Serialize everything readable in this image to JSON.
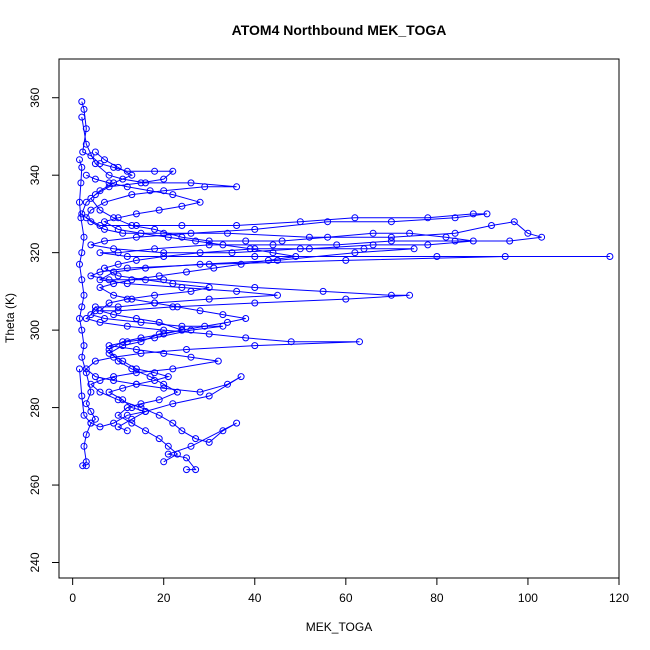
{
  "chart_data": {
    "type": "scatter",
    "title": "ATOM4 Northbound MEK_TOGA",
    "xlabel": "MEK_TOGA",
    "ylabel": "Theta (K)",
    "xlim": [
      -3,
      120
    ],
    "ylim": [
      236,
      370
    ],
    "x_ticks": [
      0,
      20,
      40,
      60,
      80,
      100,
      120
    ],
    "y_ticks": [
      240,
      260,
      280,
      300,
      320,
      340,
      360
    ],
    "grid": false,
    "legend": "none",
    "point_style": "open-circle-connected",
    "series": [
      {
        "color": "#0000ff",
        "points": [
          [
            2,
            359
          ],
          [
            2.5,
            357
          ],
          [
            3,
            352
          ],
          [
            2.2,
            346
          ],
          [
            4,
            345
          ],
          [
            6,
            343
          ],
          [
            9,
            342
          ],
          [
            12,
            341
          ],
          [
            18,
            341
          ],
          [
            22,
            341
          ],
          [
            20,
            339
          ],
          [
            15,
            338
          ],
          [
            8,
            337
          ],
          [
            5,
            335
          ],
          [
            3,
            333
          ],
          [
            2,
            330
          ],
          [
            4,
            328
          ],
          [
            7,
            326
          ],
          [
            11,
            325
          ],
          [
            20,
            325
          ],
          [
            34,
            325
          ],
          [
            52,
            324
          ],
          [
            70,
            324
          ],
          [
            84,
            325
          ],
          [
            92,
            327
          ],
          [
            97,
            328
          ],
          [
            100,
            325
          ],
          [
            103,
            324
          ],
          [
            96,
            323
          ],
          [
            84,
            323
          ],
          [
            70,
            323
          ],
          [
            58,
            322
          ],
          [
            44,
            322
          ],
          [
            30,
            322
          ],
          [
            18,
            321
          ],
          [
            10,
            320
          ],
          [
            6,
            320
          ],
          [
            12,
            319
          ],
          [
            40,
            319
          ],
          [
            80,
            319
          ],
          [
            118,
            319
          ],
          [
            95,
            319
          ],
          [
            60,
            318
          ],
          [
            30,
            317
          ],
          [
            12,
            316
          ],
          [
            6,
            315
          ],
          [
            4,
            314
          ],
          [
            8,
            313
          ],
          [
            20,
            313
          ],
          [
            40,
            311
          ],
          [
            55,
            310
          ],
          [
            70,
            309
          ],
          [
            74,
            309
          ],
          [
            60,
            308
          ],
          [
            40,
            307
          ],
          [
            22,
            306
          ],
          [
            10,
            305
          ],
          [
            5,
            305
          ],
          [
            3,
            303
          ],
          [
            6,
            302
          ],
          [
            12,
            301
          ],
          [
            20,
            300
          ],
          [
            30,
            299
          ],
          [
            38,
            298
          ],
          [
            48,
            297
          ],
          [
            63,
            297
          ],
          [
            40,
            296
          ],
          [
            25,
            295
          ],
          [
            15,
            294
          ],
          [
            9,
            293
          ],
          [
            5,
            292
          ],
          [
            3,
            290
          ],
          [
            5,
            288
          ],
          [
            9,
            287
          ],
          [
            14,
            286
          ],
          [
            20,
            285
          ],
          [
            28,
            284
          ],
          [
            34,
            286
          ],
          [
            37,
            288
          ],
          [
            30,
            283
          ],
          [
            22,
            281
          ],
          [
            16,
            279
          ],
          [
            12,
            278
          ],
          [
            9,
            276
          ],
          [
            6,
            275
          ],
          [
            4,
            276
          ],
          [
            3,
            273
          ],
          [
            2.5,
            270
          ],
          [
            3,
            266
          ],
          [
            2.2,
            265
          ],
          [
            3,
            265
          ]
        ]
      },
      {
        "color": "#0000ff",
        "points": [
          [
            2,
            355
          ],
          [
            3,
            348
          ],
          [
            5,
            343
          ],
          [
            8,
            340
          ],
          [
            11,
            339
          ],
          [
            16,
            338
          ],
          [
            26,
            338
          ],
          [
            36,
            337
          ],
          [
            29,
            337
          ],
          [
            20,
            336
          ],
          [
            13,
            335
          ],
          [
            7,
            333
          ],
          [
            4,
            331
          ],
          [
            3,
            329
          ],
          [
            6,
            327
          ],
          [
            14,
            327
          ],
          [
            24,
            327
          ],
          [
            36,
            327
          ],
          [
            50,
            328
          ],
          [
            62,
            329
          ],
          [
            78,
            329
          ],
          [
            88,
            330
          ],
          [
            91,
            330
          ],
          [
            84,
            329
          ],
          [
            70,
            328
          ],
          [
            56,
            328
          ],
          [
            40,
            326
          ],
          [
            26,
            325
          ],
          [
            14,
            324
          ],
          [
            7,
            323
          ],
          [
            4,
            322
          ],
          [
            9,
            321
          ],
          [
            20,
            320
          ],
          [
            35,
            320
          ],
          [
            50,
            321
          ],
          [
            64,
            321
          ],
          [
            75,
            321
          ],
          [
            62,
            320
          ],
          [
            45,
            318
          ],
          [
            28,
            317
          ],
          [
            16,
            316
          ],
          [
            9,
            315
          ],
          [
            6,
            313
          ],
          [
            12,
            312
          ],
          [
            24,
            311
          ],
          [
            36,
            310
          ],
          [
            45,
            309
          ],
          [
            30,
            308
          ],
          [
            18,
            307
          ],
          [
            10,
            306
          ],
          [
            5,
            306
          ],
          [
            4,
            304
          ],
          [
            7,
            303
          ],
          [
            15,
            302
          ],
          [
            24,
            301
          ],
          [
            33,
            301
          ],
          [
            26,
            300
          ],
          [
            18,
            298
          ],
          [
            12,
            297
          ],
          [
            8,
            296
          ],
          [
            14,
            295
          ],
          [
            20,
            294
          ],
          [
            26,
            293
          ],
          [
            32,
            292
          ],
          [
            22,
            290
          ],
          [
            14,
            289
          ],
          [
            9,
            288
          ],
          [
            6,
            287
          ],
          [
            4,
            286
          ],
          [
            6,
            284
          ],
          [
            10,
            282
          ],
          [
            15,
            280
          ],
          [
            19,
            278
          ],
          [
            22,
            276
          ],
          [
            24,
            274
          ],
          [
            27,
            272
          ],
          [
            30,
            271
          ],
          [
            33,
            274
          ],
          [
            36,
            276
          ],
          [
            26,
            270
          ],
          [
            21,
            268
          ],
          [
            25,
            267
          ],
          [
            27,
            264
          ],
          [
            25,
            264
          ]
        ]
      },
      {
        "color": "#0000ff",
        "points": [
          [
            1.5,
            344
          ],
          [
            2,
            342
          ],
          [
            1.8,
            338
          ],
          [
            1.5,
            333
          ],
          [
            1.8,
            329
          ],
          [
            2.5,
            324
          ],
          [
            2,
            320
          ],
          [
            1.5,
            317
          ],
          [
            2,
            313
          ],
          [
            2.5,
            309
          ],
          [
            2,
            306
          ],
          [
            1.5,
            303
          ],
          [
            2,
            300
          ],
          [
            2.5,
            296
          ],
          [
            2,
            293
          ],
          [
            3,
            289
          ],
          [
            4,
            284
          ],
          [
            3,
            281
          ],
          [
            4,
            279
          ],
          [
            5,
            277
          ],
          [
            4,
            276
          ],
          [
            2.5,
            278
          ],
          [
            2,
            283
          ],
          [
            1.5,
            290
          ]
        ]
      },
      {
        "color": "#0000ff",
        "points": [
          [
            5,
            346
          ],
          [
            7,
            344
          ],
          [
            10,
            342
          ],
          [
            13,
            340
          ],
          [
            9,
            338
          ],
          [
            6,
            336
          ],
          [
            4,
            334
          ],
          [
            6,
            331
          ],
          [
            9,
            329
          ],
          [
            13,
            327
          ],
          [
            18,
            326
          ],
          [
            24,
            324
          ],
          [
            30,
            323
          ],
          [
            38,
            323
          ],
          [
            46,
            323
          ],
          [
            56,
            324
          ],
          [
            66,
            325
          ],
          [
            74,
            325
          ],
          [
            82,
            324
          ],
          [
            88,
            323
          ],
          [
            78,
            322
          ],
          [
            66,
            322
          ],
          [
            52,
            321
          ],
          [
            40,
            321
          ],
          [
            28,
            320
          ],
          [
            20,
            319
          ],
          [
            14,
            318
          ],
          [
            10,
            317
          ],
          [
            7,
            316
          ],
          [
            10,
            314
          ],
          [
            16,
            313
          ],
          [
            22,
            312
          ],
          [
            30,
            311
          ],
          [
            26,
            310
          ],
          [
            18,
            309
          ],
          [
            12,
            308
          ],
          [
            8,
            307
          ],
          [
            6,
            305
          ],
          [
            9,
            304
          ],
          [
            14,
            303
          ],
          [
            19,
            302
          ],
          [
            24,
            300
          ],
          [
            20,
            299
          ],
          [
            15,
            298
          ],
          [
            11,
            297
          ],
          [
            8,
            295
          ],
          [
            10,
            292
          ],
          [
            13,
            290
          ],
          [
            17,
            288
          ],
          [
            20,
            286
          ],
          [
            23,
            284
          ],
          [
            19,
            282
          ],
          [
            15,
            281
          ],
          [
            12,
            280
          ],
          [
            10,
            278
          ],
          [
            13,
            276
          ],
          [
            16,
            274
          ],
          [
            19,
            272
          ],
          [
            21,
            270
          ],
          [
            23,
            268
          ],
          [
            20,
            266
          ]
        ]
      },
      {
        "color": "#0000ff",
        "points": [
          [
            3,
            340
          ],
          [
            5,
            339
          ],
          [
            8,
            338
          ],
          [
            12,
            337
          ],
          [
            17,
            336
          ],
          [
            22,
            335
          ],
          [
            28,
            333
          ],
          [
            24,
            332
          ],
          [
            19,
            331
          ],
          [
            14,
            330
          ],
          [
            10,
            329
          ],
          [
            7,
            328
          ],
          [
            10,
            326
          ],
          [
            15,
            325
          ],
          [
            21,
            324
          ],
          [
            27,
            323
          ],
          [
            33,
            322
          ],
          [
            39,
            321
          ],
          [
            44,
            320
          ],
          [
            49,
            319
          ],
          [
            43,
            318
          ],
          [
            37,
            317
          ],
          [
            31,
            316
          ],
          [
            25,
            315
          ],
          [
            19,
            314
          ],
          [
            13,
            313
          ],
          [
            9,
            312
          ],
          [
            6,
            311
          ],
          [
            9,
            309
          ],
          [
            13,
            308
          ],
          [
            18,
            307
          ],
          [
            23,
            306
          ],
          [
            28,
            305
          ],
          [
            33,
            304
          ],
          [
            38,
            303
          ],
          [
            34,
            302
          ],
          [
            29,
            301
          ],
          [
            24,
            300
          ],
          [
            19,
            299
          ],
          [
            15,
            297
          ],
          [
            11,
            296
          ],
          [
            8,
            294
          ],
          [
            11,
            292
          ],
          [
            14,
            290
          ],
          [
            18,
            289
          ],
          [
            21,
            288
          ],
          [
            18,
            287
          ],
          [
            14,
            286
          ],
          [
            11,
            285
          ],
          [
            8,
            284
          ],
          [
            11,
            282
          ],
          [
            13,
            280
          ],
          [
            16,
            279
          ],
          [
            13,
            277
          ],
          [
            10,
            275
          ],
          [
            12,
            274
          ]
        ]
      }
    ]
  }
}
